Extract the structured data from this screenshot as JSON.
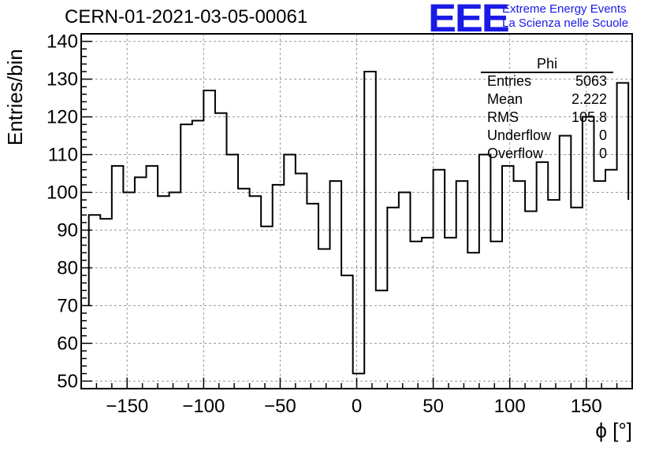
{
  "header": {
    "run_title": "CERN-01-2021-03-05-00061",
    "logo_mark": "EEE",
    "logo_line1": "Extreme Energy Events",
    "logo_line2": "La Scienza nelle Scuole",
    "logo_color": "#1a1ae6"
  },
  "stats_box": {
    "title": "Phi",
    "rows": [
      {
        "label": "Entries",
        "value": "5063"
      },
      {
        "label": "Mean",
        "value": "2.222"
      },
      {
        "label": "RMS",
        "value": "105.8"
      },
      {
        "label": "Underflow",
        "value": "0"
      },
      {
        "label": "Overflow",
        "value": "0"
      }
    ]
  },
  "chart_data": {
    "type": "histogram",
    "title": "CERN-01-2021-03-05-00061",
    "xlabel": "ϕ [°]",
    "ylabel": "Entries/bin",
    "xlim": [
      -180,
      180
    ],
    "ylim": [
      48,
      142
    ],
    "x_ticks": [
      -150,
      -100,
      -50,
      0,
      50,
      100,
      150
    ],
    "x_tick_labels": [
      "−150",
      "−100",
      "−50",
      "0",
      "50",
      "100",
      "150"
    ],
    "y_ticks": [
      50,
      60,
      70,
      80,
      90,
      100,
      110,
      120,
      130,
      140
    ],
    "y_tick_labels": [
      "50",
      "60",
      "70",
      "80",
      "90",
      "100",
      "110",
      "120",
      "130",
      "140"
    ],
    "grid": true,
    "bin_edges": [
      -175,
      -167.5,
      -160,
      -152.5,
      -145,
      -137.5,
      -130,
      -122.5,
      -115,
      -107.5,
      -100,
      -92.5,
      -85,
      -77.5,
      -70,
      -62.5,
      -55,
      -47.5,
      -40,
      -32.5,
      -25,
      -17.5,
      -10,
      -2.5,
      5,
      12.5,
      20,
      27.5,
      35,
      42.5,
      50,
      57.5,
      65,
      72.5,
      80,
      87.5,
      95,
      102.5,
      110,
      117.5,
      125,
      132.5,
      140,
      147.5,
      155,
      162.5,
      170,
      177.5
    ],
    "values": [
      94,
      93,
      107,
      100,
      104,
      107,
      99,
      100,
      118,
      119,
      127,
      121,
      110,
      101,
      99,
      91,
      102,
      110,
      105,
      97,
      85,
      103,
      78,
      52,
      132,
      74,
      96,
      100,
      87,
      88,
      106,
      88,
      103,
      84,
      110,
      87,
      107,
      103,
      95,
      108,
      98,
      115,
      96,
      120,
      103,
      106,
      129,
      98
    ],
    "first_edge_value_start": 70,
    "line_color": "#000000",
    "grid_color": "#9a9a9a"
  }
}
